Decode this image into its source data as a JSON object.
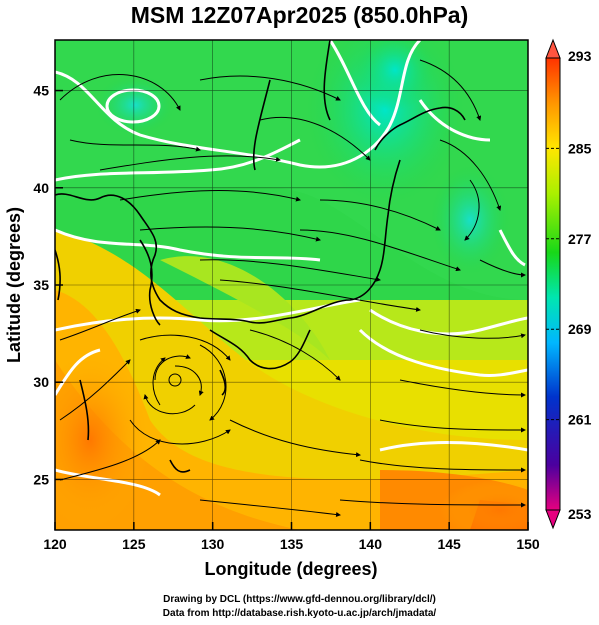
{
  "title": "MSM 12Z07Apr2025 (850.0hPa)",
  "x_axis": {
    "label": "Longitude (degrees)",
    "ticks": [
      "120",
      "125",
      "130",
      "135",
      "140",
      "145",
      "150"
    ],
    "range": [
      120,
      150
    ]
  },
  "y_axis": {
    "label": "Latitude  (degrees)",
    "ticks": [
      "25",
      "30",
      "35",
      "40",
      "45"
    ],
    "range": [
      22.4,
      47.6
    ]
  },
  "colorbar": {
    "ticks": [
      "293",
      "285",
      "277",
      "269",
      "261",
      "253"
    ],
    "range": [
      253,
      293
    ],
    "colors": [
      "#e6007f",
      "#4b009f",
      "#0033cc",
      "#00b7ff",
      "#00e6b0",
      "#18d818",
      "#aaf000",
      "#ffe600",
      "#ff9600",
      "#ff3300",
      "#ff6a50"
    ]
  },
  "credits": {
    "line1": "Drawing by DCL (https://www.gfd-dennou.org/library/dcl/)",
    "line2": "Data from http://database.rish.kyoto-u.ac.jp/arch/jmadata/"
  },
  "chart_data": {
    "type": "heatmap",
    "title": "MSM 12Z07Apr2025 (850.0hPa)",
    "xlabel": "Longitude (degrees)",
    "ylabel": "Latitude  (degrees)",
    "xlim": [
      120,
      150
    ],
    "ylim": [
      22.4,
      47.6
    ],
    "colorbar_range": [
      253,
      293
    ],
    "field": "temperature (shaded), white contours, black streamlines",
    "grid": true,
    "features": [
      {
        "name": "cyclonic vortex",
        "lon": 128.5,
        "lat": 31.5
      },
      {
        "name": "cold pocket",
        "lon": 125.0,
        "lat": 45.3
      },
      {
        "name": "cold pocket",
        "lon": 141.0,
        "lat": 40.0
      },
      {
        "name": "vortex",
        "lon": 146.5,
        "lat": 38.5
      }
    ]
  }
}
